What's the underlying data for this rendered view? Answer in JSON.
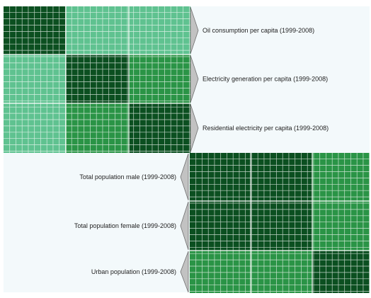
{
  "chart_data": [
    {
      "type": "heatmap",
      "rows": [
        "Oil consumption per capita (1999-2008)",
        "Electricity generation per capita (1999-2008)",
        "Residential electricity per capita (1999-2008)"
      ],
      "columns": [
        "Oil consumption per capita (1999-2008)",
        "Electricity generation per capita (1999-2008)",
        "Residential electricity per capita (1999-2008)"
      ],
      "values": [
        [
          1.0,
          0.45,
          0.45
        ],
        [
          0.45,
          1.0,
          0.8
        ],
        [
          0.45,
          0.8,
          1.0
        ]
      ],
      "label_side": "right"
    },
    {
      "type": "heatmap",
      "rows": [
        "Total population male (1999-2008)",
        "Total population female (1999-2008)",
        "Urban population (1999-2008)"
      ],
      "columns": [
        "Total population male (1999-2008)",
        "Total population female (1999-2008)",
        "Urban population (1999-2008)"
      ],
      "values": [
        [
          1.0,
          1.0,
          0.8
        ],
        [
          1.0,
          1.0,
          0.8
        ],
        [
          0.8,
          0.8,
          1.0
        ]
      ],
      "label_side": "left"
    }
  ],
  "colors": {
    "background": "#f3f9fb",
    "gridline": "#ffffff",
    "arrow_fill": "#c2c2c2",
    "arrow_stroke": "#6f6f6f",
    "scale": {
      "0.45": "#5fc290",
      "0.8": "#2a9446",
      "1.0": "#0b4f20"
    }
  }
}
